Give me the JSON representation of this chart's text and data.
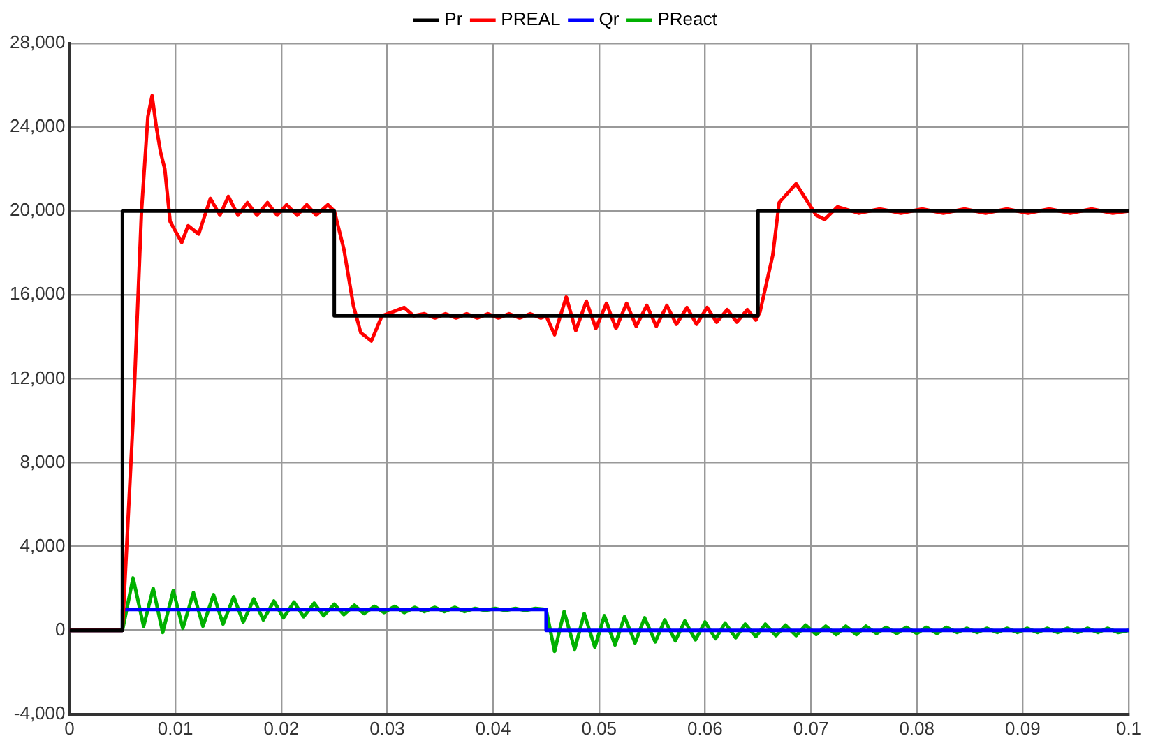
{
  "chart_data": {
    "type": "line",
    "legend": "top",
    "grid": true,
    "marker": "none",
    "line_style": "solid",
    "xlim": [
      0,
      0.1
    ],
    "xticks": [
      0,
      0.01,
      0.02,
      0.03,
      0.04,
      0.05,
      0.06,
      0.07,
      0.08,
      0.09,
      0.1
    ],
    "ylim": [
      -4000,
      28000
    ],
    "yticks": [
      {
        "value": -4000,
        "label": "-4,000"
      },
      0,
      {
        "value": 4000,
        "label": "4,000"
      },
      {
        "value": 8000,
        "label": "8,000"
      },
      {
        "value": 12000,
        "label": "12,000"
      },
      {
        "value": 16000,
        "label": "16,000"
      },
      {
        "value": 20000,
        "label": "20,000"
      },
      {
        "value": 24000,
        "label": "24,000"
      },
      {
        "value": 28000,
        "label": "28,000"
      }
    ],
    "series": [
      {
        "name": "Pr",
        "type": "step",
        "color": "#000000",
        "x": [
          0,
          0.005,
          0.025,
          0.065,
          0.1
        ],
        "values": [
          0,
          20000,
          15000,
          20000,
          20000
        ]
      },
      {
        "name": "PREAL",
        "color": "#ff0000",
        "x": [
          0,
          0.005,
          0.0055,
          0.006,
          0.0068,
          0.0074,
          0.0078,
          0.0082,
          0.0086,
          0.009,
          0.0095,
          0.0106,
          0.0112,
          0.0122,
          0.0133,
          0.0142,
          0.015,
          0.0159,
          0.0168,
          0.0177,
          0.0187,
          0.0196,
          0.0205,
          0.0215,
          0.0224,
          0.0233,
          0.0244,
          0.025,
          0.0259,
          0.0268,
          0.0275,
          0.0285,
          0.0295,
          0.0316,
          0.0325,
          0.0335,
          0.0345,
          0.0355,
          0.0365,
          0.0375,
          0.0385,
          0.0395,
          0.0405,
          0.0415,
          0.0425,
          0.0435,
          0.0445,
          0.045,
          0.0458,
          0.0469,
          0.0478,
          0.0488,
          0.0497,
          0.0507,
          0.0516,
          0.0526,
          0.0535,
          0.0545,
          0.0554,
          0.0564,
          0.0573,
          0.0583,
          0.0592,
          0.0602,
          0.0611,
          0.0621,
          0.063,
          0.064,
          0.0648,
          0.0652,
          0.0664,
          0.067,
          0.0686,
          0.0705,
          0.0713,
          0.0725,
          0.0745,
          0.0765,
          0.0785,
          0.0805,
          0.0825,
          0.0845,
          0.0865,
          0.0885,
          0.0905,
          0.0925,
          0.0945,
          0.0965,
          0.0985,
          0.1
        ],
        "values": [
          0,
          0,
          5000,
          10000,
          20000,
          24500,
          25500,
          24000,
          22800,
          22000,
          19500,
          18500,
          19300,
          18900,
          20600,
          19800,
          20700,
          19800,
          20400,
          19800,
          20400,
          19800,
          20300,
          19800,
          20300,
          19800,
          20300,
          20000,
          18200,
          15500,
          14200,
          13800,
          15000,
          15400,
          15000,
          15100,
          14900,
          15100,
          14900,
          15100,
          14900,
          15100,
          14900,
          15100,
          14900,
          15100,
          14900,
          15000,
          14100,
          15900,
          14300,
          15700,
          14400,
          15600,
          14400,
          15600,
          14500,
          15500,
          14500,
          15500,
          14600,
          15400,
          14600,
          15400,
          14700,
          15300,
          14700,
          15300,
          14800,
          15200,
          17900,
          20400,
          21300,
          19800,
          19600,
          20200,
          19900,
          20100,
          19900,
          20100,
          19900,
          20100,
          19900,
          20100,
          19900,
          20100,
          19900,
          20100,
          19900,
          20000
        ]
      },
      {
        "name": "Qr",
        "type": "step",
        "color": "#0000ff",
        "x": [
          0,
          0.005,
          0.045,
          0.1
        ],
        "values": [
          0,
          1000,
          0,
          0
        ]
      },
      {
        "name": "PReact",
        "color": "#00b000",
        "x": [
          0,
          0.005,
          0.006,
          0.007,
          0.0079,
          0.0088,
          0.0098,
          0.0107,
          0.0117,
          0.0126,
          0.0136,
          0.0145,
          0.0155,
          0.0164,
          0.0174,
          0.0183,
          0.0193,
          0.0202,
          0.0212,
          0.0221,
          0.0231,
          0.024,
          0.025,
          0.0259,
          0.0269,
          0.0278,
          0.0288,
          0.0297,
          0.0307,
          0.0316,
          0.0326,
          0.0335,
          0.0345,
          0.0354,
          0.0364,
          0.0373,
          0.0383,
          0.0392,
          0.0402,
          0.0411,
          0.0421,
          0.043,
          0.044,
          0.045,
          0.0458,
          0.0467,
          0.0477,
          0.0486,
          0.0496,
          0.0505,
          0.0515,
          0.0524,
          0.0534,
          0.0543,
          0.0553,
          0.0562,
          0.0572,
          0.0581,
          0.0591,
          0.06,
          0.061,
          0.0619,
          0.0629,
          0.0638,
          0.0648,
          0.0657,
          0.0667,
          0.0676,
          0.0686,
          0.0695,
          0.0705,
          0.0714,
          0.0724,
          0.0733,
          0.0743,
          0.0752,
          0.0762,
          0.0771,
          0.0781,
          0.079,
          0.08,
          0.0809,
          0.0819,
          0.0828,
          0.0838,
          0.0847,
          0.0857,
          0.0866,
          0.0876,
          0.0885,
          0.0895,
          0.0904,
          0.0914,
          0.0923,
          0.0933,
          0.0942,
          0.0952,
          0.0961,
          0.0971,
          0.098,
          0.099,
          0.1
        ],
        "values": [
          0,
          0,
          2500,
          200,
          2000,
          -100,
          1900,
          100,
          1800,
          200,
          1700,
          300,
          1600,
          400,
          1500,
          500,
          1400,
          600,
          1350,
          650,
          1300,
          700,
          1250,
          750,
          1200,
          800,
          1150,
          850,
          1150,
          850,
          1100,
          900,
          1100,
          900,
          1100,
          900,
          1050,
          950,
          1050,
          950,
          1050,
          950,
          1050,
          1000,
          -1000,
          900,
          -900,
          800,
          -800,
          700,
          -700,
          650,
          -600,
          600,
          -550,
          500,
          -500,
          450,
          -450,
          400,
          -400,
          350,
          -350,
          300,
          -300,
          300,
          -250,
          250,
          -250,
          250,
          -200,
          200,
          -200,
          200,
          -200,
          200,
          -150,
          150,
          -150,
          150,
          -150,
          150,
          -150,
          150,
          -100,
          100,
          -100,
          100,
          -100,
          100,
          -100,
          100,
          -100,
          100,
          -100,
          100,
          -100,
          100,
          -100,
          100,
          -100,
          0
        ]
      }
    ]
  }
}
